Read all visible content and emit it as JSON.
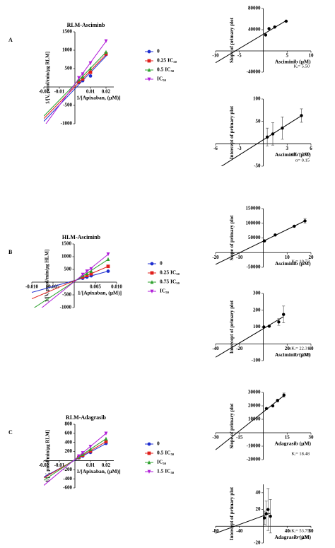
{
  "chart_data": [
    {
      "type": "line",
      "panel": "A",
      "title": "RLM-Asciminb",
      "y_label": "1/[V, pmol/min/µg RLM]",
      "x_label": "1/[Apixaban, (µM)]",
      "x": [
        0.0025,
        0.005,
        0.01,
        0.02
      ],
      "xlim": [
        -0.02,
        0.025
      ],
      "xticks": [
        -0.02,
        -0.01,
        0.01,
        0.02
      ],
      "ylim": [
        -1000,
        1500
      ],
      "yticks": [
        -1000,
        -500,
        500,
        1000,
        1500
      ],
      "legend": "right",
      "series": [
        {
          "name": "0",
          "color": "#1f2fd0",
          "marker": "circle",
          "values": [
            120,
            170,
            300,
            880
          ]
        },
        {
          "name": "0.25 IC₅₀",
          "color": "#e0201c",
          "marker": "square",
          "values": [
            150,
            220,
            400,
            900
          ]
        },
        {
          "name": "0.5 IC₅₀",
          "color": "#2ca02c",
          "marker": "triangle",
          "values": [
            200,
            280,
            500,
            950
          ]
        },
        {
          "name": "IC₅₀",
          "color": "#b01cd8",
          "marker": "triangle-down",
          "values": [
            250,
            350,
            650,
            1250
          ]
        }
      ]
    },
    {
      "type": "scatter",
      "y_label": "Slope of primary plot",
      "x_label": "Asciminib (µM)",
      "color": "#000000",
      "x": [
        0.5,
        1.2,
        2.4,
        4.8
      ],
      "values": [
        30000,
        42000,
        45000,
        56000
      ],
      "xlim": [
        -10,
        10
      ],
      "xticks": [
        -10,
        -5,
        5,
        10
      ],
      "ylim": [
        -40000,
        80000
      ],
      "yticks": [
        -40000,
        40000,
        80000
      ],
      "annotations": [
        "Kᵢ= 5.50"
      ]
    },
    {
      "type": "scatter",
      "y_label": "Intercept of primary plot",
      "x_label": "Asciminib (µM)",
      "color": "#000000",
      "x": [
        0.5,
        1.2,
        2.4,
        4.8
      ],
      "values": [
        15,
        22,
        35,
        63
      ],
      "errors": [
        20,
        25,
        25,
        15
      ],
      "xlim": [
        -6,
        6
      ],
      "xticks": [
        -6,
        -3,
        3,
        6
      ],
      "ylim": [
        -50,
        100
      ],
      "yticks": [
        -50,
        50,
        100
      ],
      "annotations": [
        "αKᵢ= 0.80",
        "α= 0.15"
      ]
    },
    {
      "type": "line",
      "panel": "B",
      "title": "HLM-Asciminb",
      "y_label": "1/[V, pmol/min/µg HLM]",
      "x_label": "1/[Apixaban, (µM)]",
      "x": [
        0.002,
        0.003,
        0.004,
        0.008
      ],
      "xlim": [
        -0.01,
        0.01
      ],
      "xticks": [
        {
          "value": -0.01,
          "label": "-0.010"
        },
        -0.005,
        0.005,
        {
          "value": 0.01,
          "label": "0.010"
        }
      ],
      "ylim": [
        -1000,
        1500
      ],
      "yticks": [
        -1000,
        -500,
        500,
        1000,
        1500
      ],
      "legend": "right",
      "series": [
        {
          "name": "0",
          "color": "#1f2fd0",
          "marker": "circle",
          "values": [
            150,
            200,
            250,
            430
          ]
        },
        {
          "name": "0.25 IC₅₀",
          "color": "#e0201c",
          "marker": "square",
          "values": [
            200,
            260,
            330,
            620
          ]
        },
        {
          "name": "0.75 IC₅₀",
          "color": "#2ca02c",
          "marker": "triangle",
          "values": [
            260,
            340,
            430,
            900
          ]
        },
        {
          "name": "IC₅₀",
          "color": "#b01cd8",
          "marker": "triangle-down",
          "values": [
            300,
            430,
            520,
            1100
          ]
        }
      ]
    },
    {
      "type": "scatter",
      "y_label": "Slope of primary plot",
      "x_label": "Asciminib (µM)",
      "color": "#000000",
      "x": [
        0.5,
        5,
        13,
        17.5
      ],
      "values": [
        40000,
        60000,
        90000,
        108000
      ],
      "errors": [
        0,
        0,
        0,
        8000
      ],
      "xlim": [
        -20,
        20
      ],
      "xticks": [
        -20,
        -10,
        10,
        20
      ],
      "ylim": [
        -50000,
        150000
      ],
      "yticks": [
        -50000,
        50000,
        100000,
        150000
      ],
      "annotations": [
        "Kᵢ= 10.73"
      ]
    },
    {
      "type": "scatter",
      "y_label": "Intercept of primary plot",
      "x_label": "Asciminib (µM)",
      "color": "#000000",
      "x": [
        0.5,
        5,
        13,
        17
      ],
      "values": [
        100,
        105,
        130,
        175
      ],
      "errors": [
        0,
        0,
        20,
        50
      ],
      "xlim": [
        -40,
        40
      ],
      "xticks": [
        -40,
        -20,
        20,
        40
      ],
      "ylim": [
        -100,
        300
      ],
      "yticks": [
        -100,
        100,
        200,
        300
      ],
      "annotations": [
        "αKᵢ= 22.31",
        "α= 2.08"
      ]
    },
    {
      "type": "line",
      "panel": "C",
      "title": "RLM-Adagrasib",
      "y_label": "1/[V, pmol/min/µg RLM]",
      "x_label": "1/[Apixaban, (µM)]",
      "x": [
        0.0025,
        0.005,
        0.01,
        0.02
      ],
      "xlim": [
        -0.02,
        0.025
      ],
      "xticks": [
        -0.02,
        -0.01,
        0.01,
        0.02
      ],
      "ylim": [
        -600,
        800
      ],
      "yticks": [
        -600,
        -400,
        -200,
        200,
        400,
        600,
        800
      ],
      "legend": "right",
      "series": [
        {
          "name": "0",
          "color": "#1f2fd0",
          "marker": "circle",
          "values": [
            60,
            100,
            180,
            380
          ]
        },
        {
          "name": "0.5 IC₅₀",
          "color": "#e0201c",
          "marker": "square",
          "values": [
            70,
            120,
            210,
            420
          ]
        },
        {
          "name": "IC₅₀",
          "color": "#2ca02c",
          "marker": "triangle",
          "values": [
            80,
            140,
            250,
            480
          ]
        },
        {
          "name": "1.5 IC₅₀",
          "color": "#b01cd8",
          "marker": "triangle-down",
          "values": [
            100,
            170,
            310,
            600
          ]
        }
      ]
    },
    {
      "type": "scatter",
      "y_label": "Slope of primary plot",
      "x_label": "Adagrasib (µM)",
      "color": "#000000",
      "x": [
        2,
        6,
        9,
        13
      ],
      "values": [
        18000,
        20000,
        24000,
        28000
      ],
      "errors": [
        0,
        0,
        1000,
        1500
      ],
      "xlim": [
        -30,
        30
      ],
      "xticks": [
        -30,
        -15,
        15,
        30
      ],
      "ylim": [
        -20000,
        30000
      ],
      "yticks": [
        -20000,
        -10000,
        10000,
        20000,
        30000
      ],
      "annotations": [
        "Kᵢ= 18.48"
      ]
    },
    {
      "type": "scatter",
      "y_label": "Intercept of primary plot",
      "x_label": "Adagrasib (µM)",
      "color": "#000000",
      "x": [
        2,
        5,
        8,
        12
      ],
      "values": [
        10,
        15,
        20,
        12
      ],
      "errors": [
        8,
        15,
        25,
        20
      ],
      "xlim": [
        -80,
        80
      ],
      "xticks": [
        -80,
        -40,
        40,
        80
      ],
      "ylim": [
        -20,
        50
      ],
      "yticks": [
        -20,
        20,
        40
      ],
      "annotations": [
        "αKᵢ= 53.75",
        "α= 2.91"
      ]
    }
  ]
}
